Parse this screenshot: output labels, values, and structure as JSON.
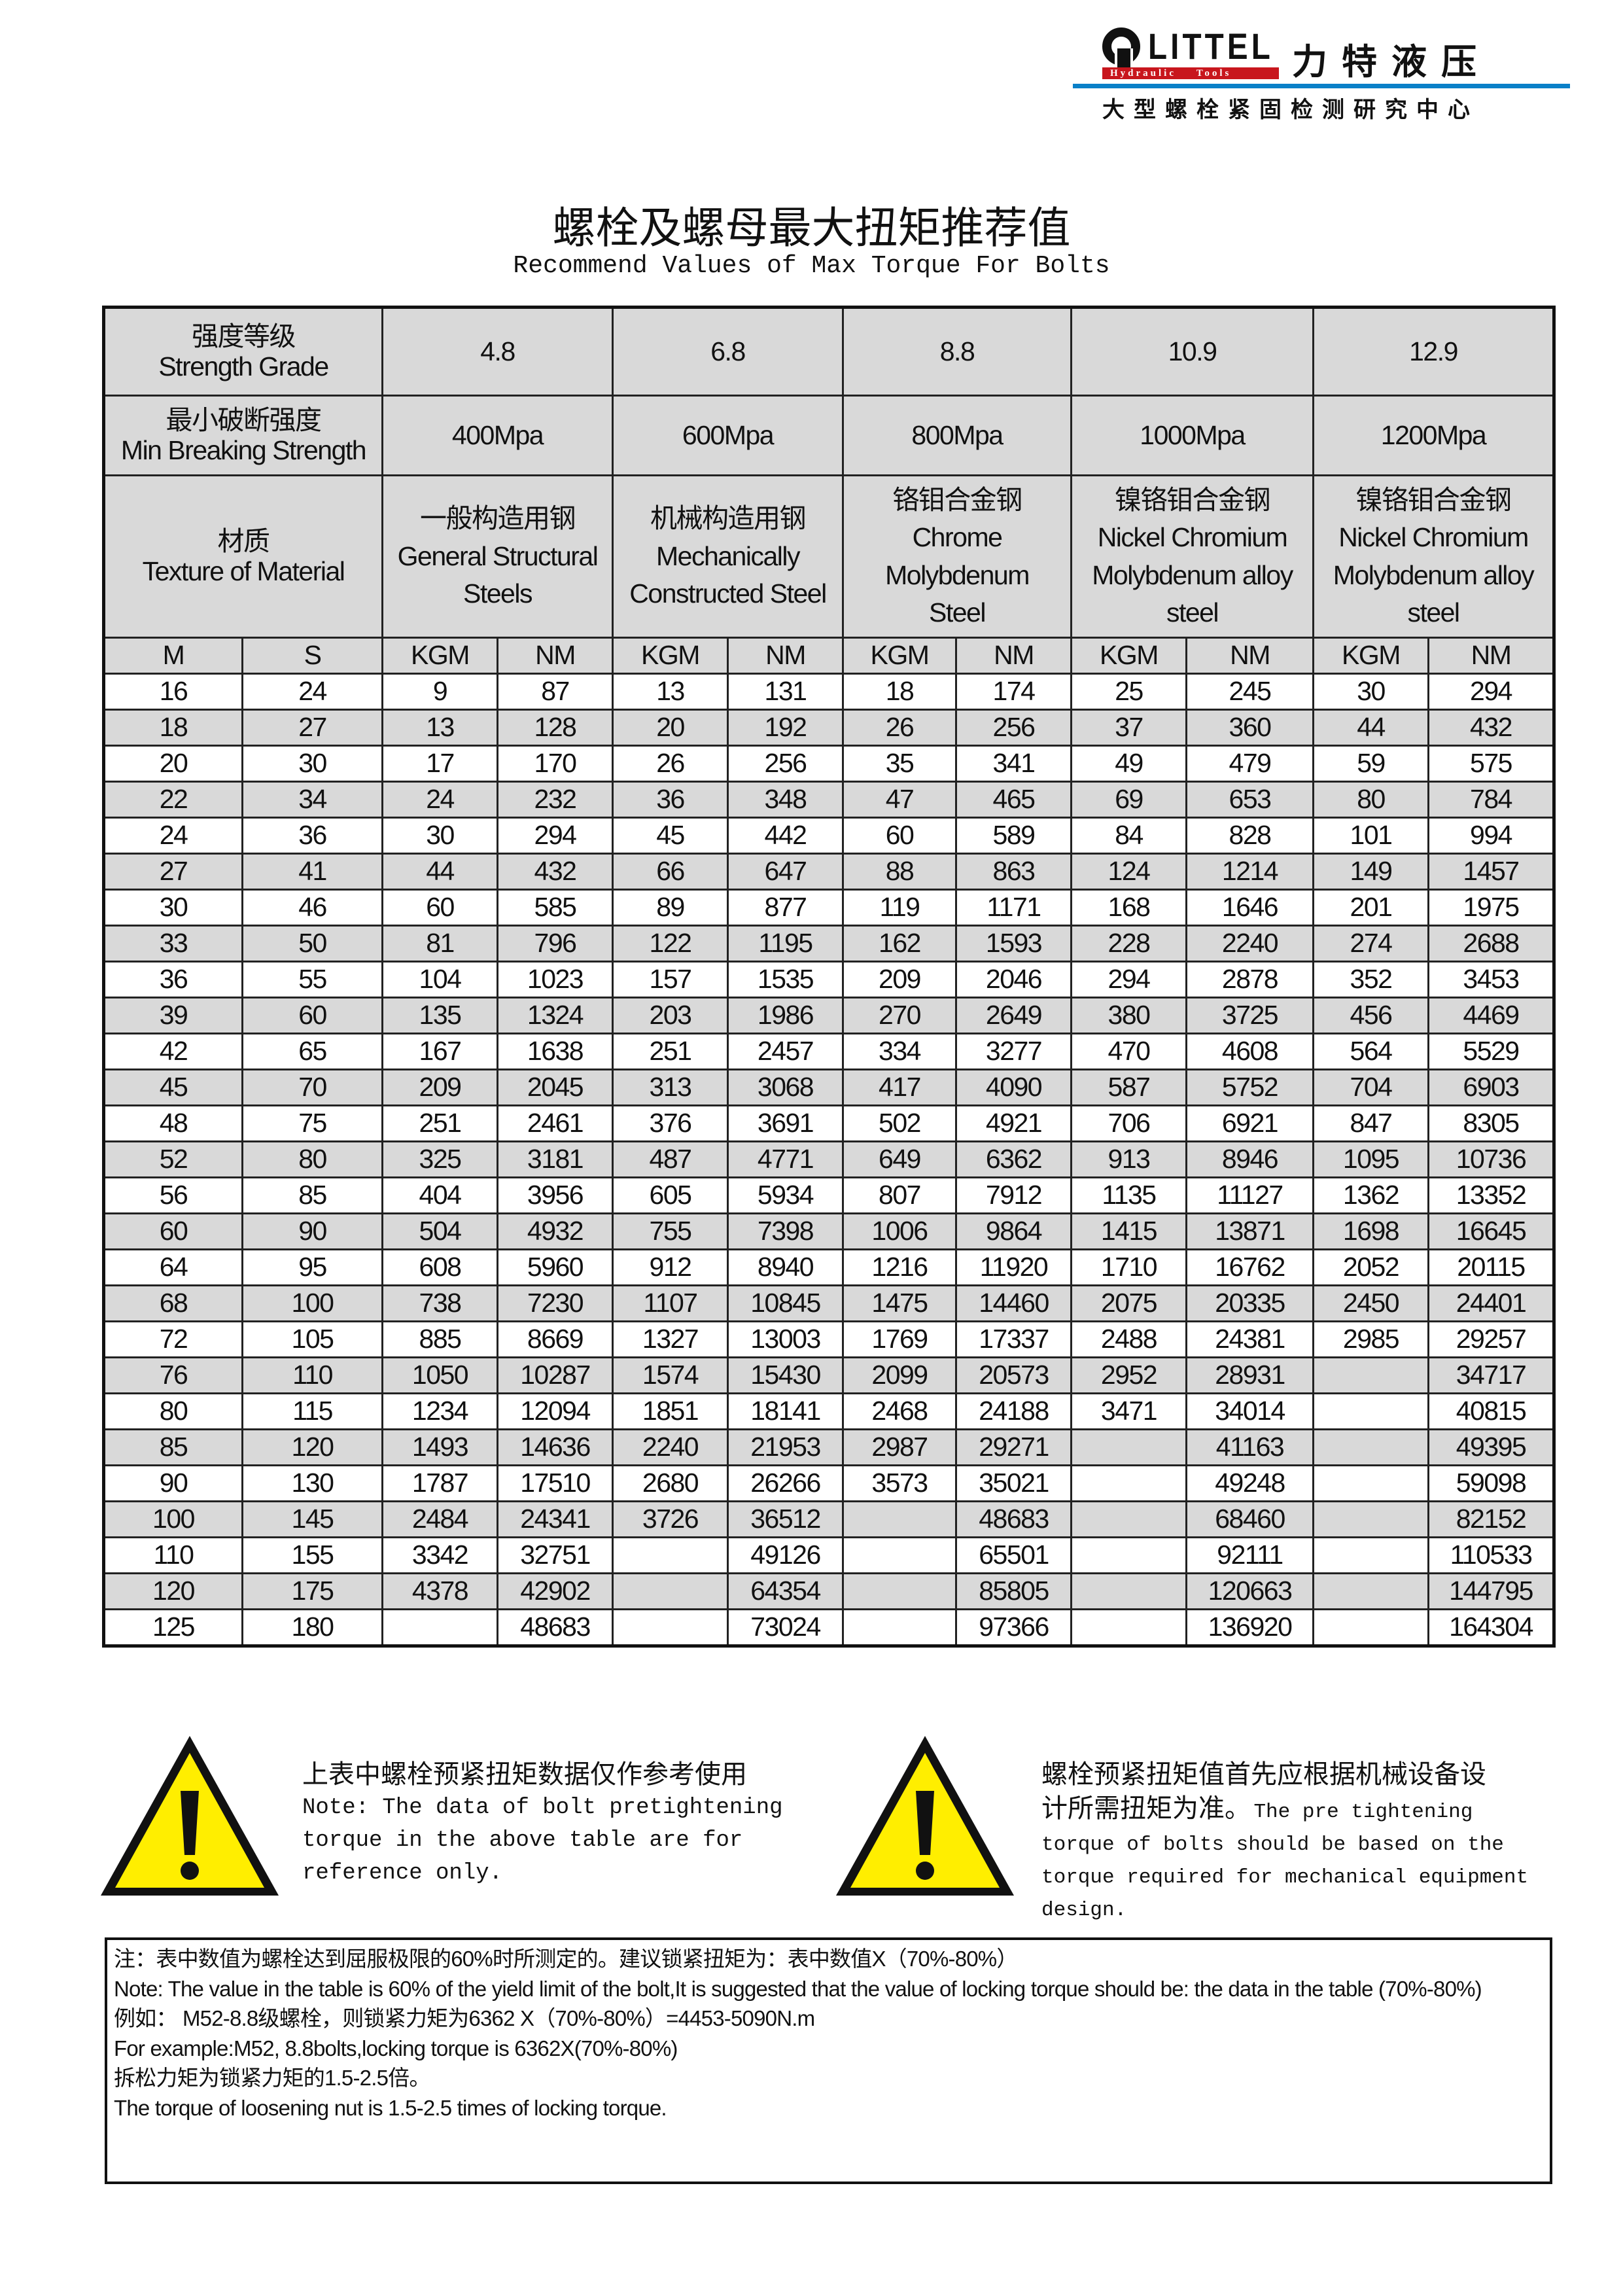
{
  "logo": {
    "brand": "LITTEL",
    "tagline": "Hydraulic    Tools",
    "cn_name": "力特液压",
    "subtitle": "大型螺栓紧固检测研究中心",
    "colors": {
      "red": "#c8161d",
      "blue": "#0a80c8"
    }
  },
  "title": "螺栓及螺母最大扭矩推荐值",
  "subtitle": "Recommend Values of Max Torque For Bolts",
  "table": {
    "grade_label": [
      "强度等级",
      "Strength Grade"
    ],
    "grades": [
      "4.8",
      "6.8",
      "8.8",
      "10.9",
      "12.9"
    ],
    "strength_label": [
      "最小破断强度",
      "Min Breaking Strength"
    ],
    "strengths": [
      "400Mpa",
      "600Mpa",
      "800Mpa",
      "1000Mpa",
      "1200Mpa"
    ],
    "material_label": [
      "材质",
      "Texture of Material"
    ],
    "materials": [
      [
        "一般构造用钢",
        "General Structural",
        "Steels"
      ],
      [
        "机械构造用钢",
        "Mechanically",
        "Constructed Steel"
      ],
      [
        "铬钼合金钢",
        "Chrome",
        "Molybdenum",
        "Steel"
      ],
      [
        "镍铬钼合金钢",
        "Nickel Chromium",
        "Molybdenum alloy",
        "steel"
      ],
      [
        "镍铬钼合金钢",
        "Nickel Chromium",
        "Molybdenum alloy",
        "steel"
      ]
    ],
    "columns": [
      "M",
      "S",
      "KGM",
      "NM",
      "KGM",
      "NM",
      "KGM",
      "NM",
      "KGM",
      "NM",
      "KGM",
      "NM"
    ],
    "rows": [
      [
        "16",
        "24",
        "9",
        "87",
        "13",
        "131",
        "18",
        "174",
        "25",
        "245",
        "30",
        "294"
      ],
      [
        "18",
        "27",
        "13",
        "128",
        "20",
        "192",
        "26",
        "256",
        "37",
        "360",
        "44",
        "432"
      ],
      [
        "20",
        "30",
        "17",
        "170",
        "26",
        "256",
        "35",
        "341",
        "49",
        "479",
        "59",
        "575"
      ],
      [
        "22",
        "34",
        "24",
        "232",
        "36",
        "348",
        "47",
        "465",
        "69",
        "653",
        "80",
        "784"
      ],
      [
        "24",
        "36",
        "30",
        "294",
        "45",
        "442",
        "60",
        "589",
        "84",
        "828",
        "101",
        "994"
      ],
      [
        "27",
        "41",
        "44",
        "432",
        "66",
        "647",
        "88",
        "863",
        "124",
        "1214",
        "149",
        "1457"
      ],
      [
        "30",
        "46",
        "60",
        "585",
        "89",
        "877",
        "119",
        "1171",
        "168",
        "1646",
        "201",
        "1975"
      ],
      [
        "33",
        "50",
        "81",
        "796",
        "122",
        "1195",
        "162",
        "1593",
        "228",
        "2240",
        "274",
        "2688"
      ],
      [
        "36",
        "55",
        "104",
        "1023",
        "157",
        "1535",
        "209",
        "2046",
        "294",
        "2878",
        "352",
        "3453"
      ],
      [
        "39",
        "60",
        "135",
        "1324",
        "203",
        "1986",
        "270",
        "2649",
        "380",
        "3725",
        "456",
        "4469"
      ],
      [
        "42",
        "65",
        "167",
        "1638",
        "251",
        "2457",
        "334",
        "3277",
        "470",
        "4608",
        "564",
        "5529"
      ],
      [
        "45",
        "70",
        "209",
        "2045",
        "313",
        "3068",
        "417",
        "4090",
        "587",
        "5752",
        "704",
        "6903"
      ],
      [
        "48",
        "75",
        "251",
        "2461",
        "376",
        "3691",
        "502",
        "4921",
        "706",
        "6921",
        "847",
        "8305"
      ],
      [
        "52",
        "80",
        "325",
        "3181",
        "487",
        "4771",
        "649",
        "6362",
        "913",
        "8946",
        "1095",
        "10736"
      ],
      [
        "56",
        "85",
        "404",
        "3956",
        "605",
        "5934",
        "807",
        "7912",
        "1135",
        "11127",
        "1362",
        "13352"
      ],
      [
        "60",
        "90",
        "504",
        "4932",
        "755",
        "7398",
        "1006",
        "9864",
        "1415",
        "13871",
        "1698",
        "16645"
      ],
      [
        "64",
        "95",
        "608",
        "5960",
        "912",
        "8940",
        "1216",
        "11920",
        "1710",
        "16762",
        "2052",
        "20115"
      ],
      [
        "68",
        "100",
        "738",
        "7230",
        "1107",
        "10845",
        "1475",
        "14460",
        "2075",
        "20335",
        "2450",
        "24401"
      ],
      [
        "72",
        "105",
        "885",
        "8669",
        "1327",
        "13003",
        "1769",
        "17337",
        "2488",
        "24381",
        "2985",
        "29257"
      ],
      [
        "76",
        "110",
        "1050",
        "10287",
        "1574",
        "15430",
        "2099",
        "20573",
        "2952",
        "28931",
        "",
        "34717"
      ],
      [
        "80",
        "115",
        "1234",
        "12094",
        "1851",
        "18141",
        "2468",
        "24188",
        "3471",
        "34014",
        "",
        "40815"
      ],
      [
        "85",
        "120",
        "1493",
        "14636",
        "2240",
        "21953",
        "2987",
        "29271",
        "",
        "41163",
        "",
        "49395"
      ],
      [
        "90",
        "130",
        "1787",
        "17510",
        "2680",
        "26266",
        "3573",
        "35021",
        "",
        "49248",
        "",
        "59098"
      ],
      [
        "100",
        "145",
        "2484",
        "24341",
        "3726",
        "36512",
        "",
        "48683",
        "",
        "68460",
        "",
        "82152"
      ],
      [
        "110",
        "155",
        "3342",
        "32751",
        "",
        "49126",
        "",
        "65501",
        "",
        "92111",
        "",
        "110533"
      ],
      [
        "120",
        "175",
        "4378",
        "42902",
        "",
        "64354",
        "",
        "85805",
        "",
        "120663",
        "",
        "144795"
      ],
      [
        "125",
        "180",
        "",
        "48683",
        "",
        "73024",
        "",
        "97366",
        "",
        "136920",
        "",
        "164304"
      ]
    ]
  },
  "warnings": [
    {
      "icon": "warning-triangle-icon",
      "cn": "上表中螺栓预紧扭矩数据仅作参考使用",
      "en": [
        "Note: The data of bolt pretightening",
        "torque in the above table are for",
        "reference only."
      ]
    },
    {
      "icon": "warning-triangle-icon",
      "cn": [
        "螺栓预紧扭矩值首先应根据机械设备设",
        "计所需扭矩为准。"
      ],
      "en": [
        "The pre tightening",
        "torque of bolts should be based on the",
        "torque required for mechanical equipment",
        "design."
      ]
    }
  ],
  "notes": [
    "注：表中数值为螺栓达到屈服极限的60%时所测定的。建议锁紧扭矩为：表中数值X（70%-80%）",
    "Note: The value in the table is  60% of the yield limit of the bolt,It is suggested that the value of locking torque should be: the data in the table (70%-80%)",
    "例如： M52-8.8级螺栓，则锁紧力矩为6362 X（70%-80%）=4453-5090N.m",
    "For example:M52, 8.8bolts,locking torque is 6362X(70%-80%)",
    "拆松力矩为锁紧力矩的1.5-2.5倍。",
    "The torque of loosening nut is 1.5-2.5 times of  locking torque."
  ]
}
